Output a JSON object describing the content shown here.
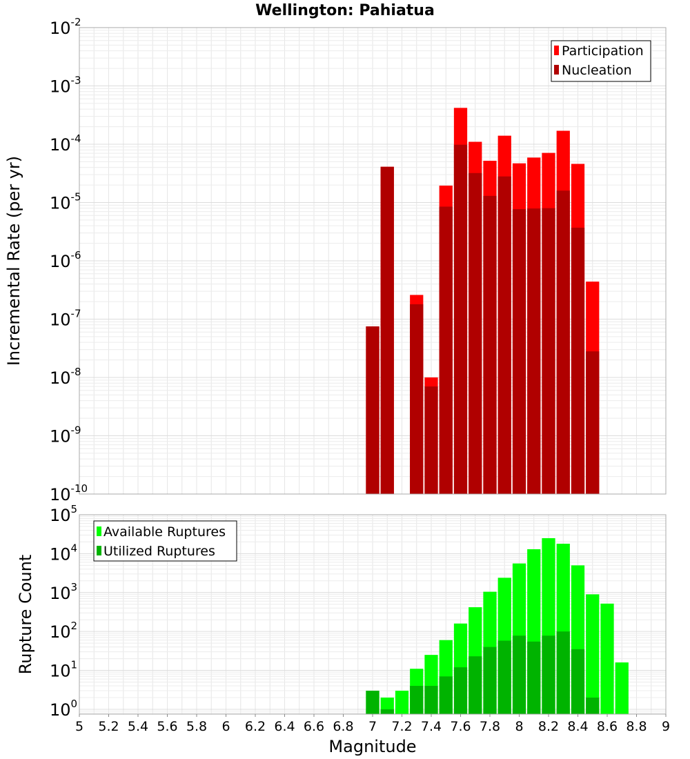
{
  "chart_data": [
    {
      "type": "bar",
      "title": "Wellington: Pahiatua",
      "xlabel": "Magnitude",
      "ylabel": "Incremental Rate (per yr)",
      "yscale": "log",
      "xlim": [
        5,
        9
      ],
      "ylim": [
        1e-10,
        0.01
      ],
      "y_tick_labels": [
        {
          "base": "10",
          "exp": "-10"
        },
        {
          "base": "10",
          "exp": "-9"
        },
        {
          "base": "10",
          "exp": "-8"
        },
        {
          "base": "10",
          "exp": "-7"
        },
        {
          "base": "10",
          "exp": "-6"
        },
        {
          "base": "10",
          "exp": "-5"
        },
        {
          "base": "10",
          "exp": "-4"
        },
        {
          "base": "10",
          "exp": "-3"
        },
        {
          "base": "10",
          "exp": "-2"
        }
      ],
      "legend": {
        "location": "top-right",
        "entries": [
          "Participation",
          "Nucleation"
        ]
      },
      "series": [
        {
          "name": "Participation",
          "color": "#ff0000",
          "x": [
            7.0,
            7.1,
            7.3,
            7.4,
            7.5,
            7.6,
            7.7,
            7.8,
            7.9,
            8.0,
            8.1,
            8.2,
            8.3,
            8.4,
            8.5
          ],
          "values": [
            7.5e-08,
            4.1e-05,
            2.6e-07,
            1e-08,
            1.95e-05,
            0.00042,
            0.00011,
            5.2e-05,
            0.00014,
            4.7e-05,
            5.9e-05,
            7.1e-05,
            0.00017,
            4.6e-05,
            4.4e-07
          ]
        },
        {
          "name": "Nucleation",
          "color": "#b00000",
          "x": [
            7.0,
            7.1,
            7.3,
            7.4,
            7.5,
            7.6,
            7.7,
            7.8,
            7.9,
            8.0,
            8.1,
            8.2,
            8.3,
            8.4,
            8.5
          ],
          "values": [
            7.5e-08,
            4.1e-05,
            1.8e-07,
            7e-09,
            8.5e-06,
            9.8e-05,
            3.2e-05,
            1.3e-05,
            2.8e-05,
            7.7e-06,
            7.9e-06,
            8e-06,
            1.6e-05,
            3.7e-06,
            2.8e-08
          ]
        }
      ]
    },
    {
      "type": "bar",
      "xlabel": "Magnitude",
      "ylabel": "Rupture Count",
      "yscale": "log",
      "xlim": [
        5,
        9
      ],
      "ylim": [
        0.75,
        100000.0
      ],
      "x_tick_labels": [
        "5",
        "5.2",
        "5.4",
        "5.6",
        "5.8",
        "6",
        "6.2",
        "6.4",
        "6.6",
        "6.8",
        "7",
        "7.2",
        "7.4",
        "7.6",
        "7.8",
        "8",
        "8.2",
        "8.4",
        "8.6",
        "8.8",
        "9"
      ],
      "y_tick_labels": [
        {
          "base": "10",
          "exp": "0"
        },
        {
          "base": "10",
          "exp": "1"
        },
        {
          "base": "10",
          "exp": "2"
        },
        {
          "base": "10",
          "exp": "3"
        },
        {
          "base": "10",
          "exp": "4"
        },
        {
          "base": "10",
          "exp": "5"
        }
      ],
      "legend": {
        "location": "top-left",
        "entries": [
          "Available Ruptures",
          "Utilized Ruptures"
        ]
      },
      "series": [
        {
          "name": "Available Ruptures",
          "color": "#00ff00",
          "x": [
            7.0,
            7.1,
            7.2,
            7.3,
            7.4,
            7.5,
            7.6,
            7.7,
            7.8,
            7.9,
            8.0,
            8.1,
            8.2,
            8.3,
            8.4,
            8.5,
            8.6,
            8.7
          ],
          "values": [
            3,
            2,
            3,
            11,
            25,
            60,
            160,
            420,
            1050,
            2400,
            5600,
            13000,
            25000,
            18000,
            5000,
            900,
            520,
            16
          ]
        },
        {
          "name": "Utilized Ruptures",
          "color": "#00b300",
          "x": [
            7.0,
            7.1,
            7.2,
            7.3,
            7.4,
            7.5,
            7.6,
            7.7,
            7.8,
            7.9,
            8.0,
            8.1,
            8.2,
            8.3,
            8.4,
            8.5
          ],
          "values": [
            3,
            1,
            0,
            4,
            4,
            7,
            12,
            23,
            40,
            58,
            78,
            55,
            78,
            100,
            35,
            2
          ]
        }
      ]
    }
  ]
}
